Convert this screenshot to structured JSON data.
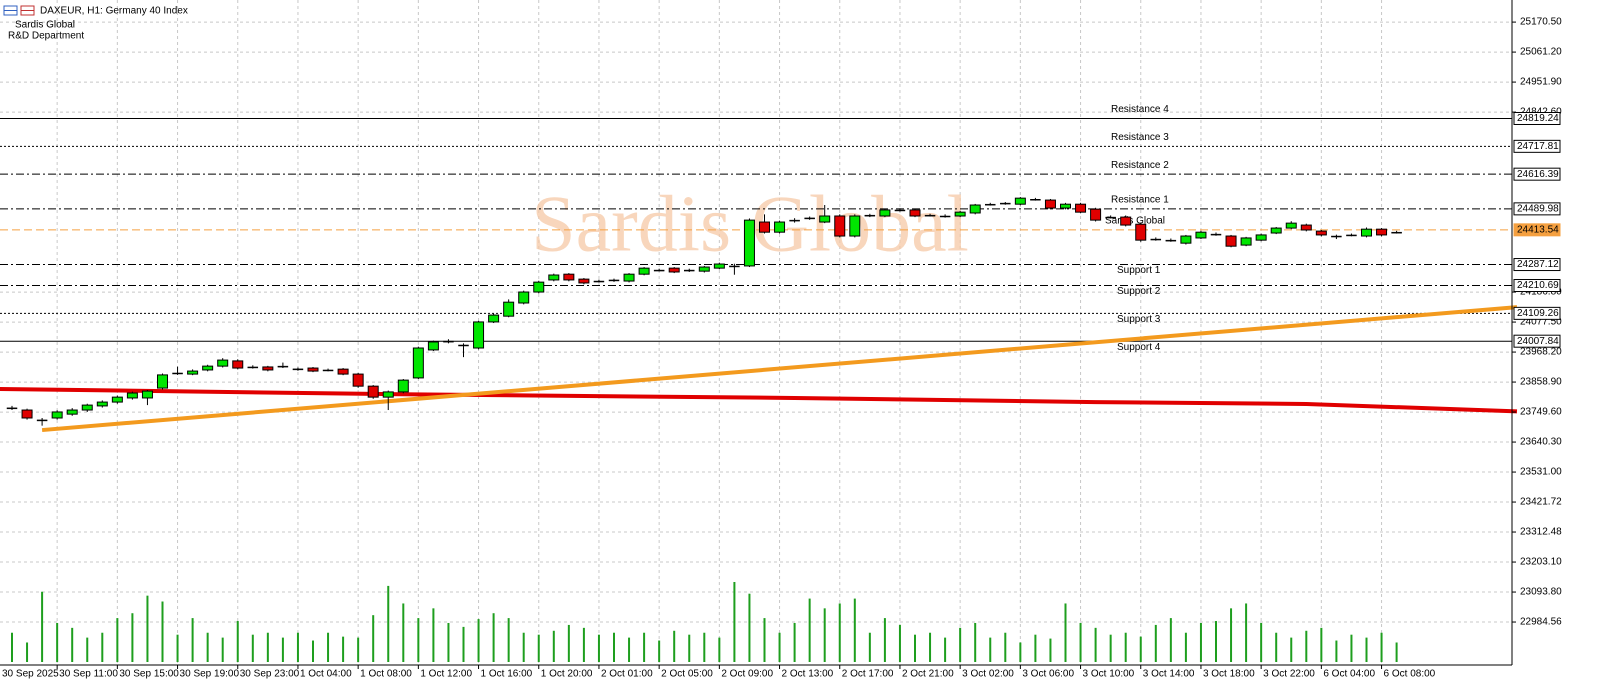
{
  "header": {
    "symbol": "DAXEUR, H1:  Germany 40 Index",
    "company": "Sardis Global",
    "department": "R&D Department",
    "watermark": "Sardis Global"
  },
  "chart_data": {
    "type": "candlestick",
    "x_labels": [
      "30 Sep 2025",
      "30 Sep 11:00",
      "30 Sep 15:00",
      "30 Sep 19:00",
      "30 Sep 23:00",
      "1 Oct 04:00",
      "1 Oct 08:00",
      "1 Oct 12:00",
      "1 Oct 16:00",
      "1 Oct 20:00",
      "2 Oct 01:00",
      "2 Oct 05:00",
      "2 Oct 09:00",
      "2 Oct 13:00",
      "2 Oct 17:00",
      "2 Oct 21:00",
      "3 Oct 02:00",
      "3 Oct 06:00",
      "3 Oct 10:00",
      "3 Oct 14:00",
      "3 Oct 18:00",
      "3 Oct 22:00",
      "6 Oct 04:00",
      "6 Oct 08:00"
    ],
    "open": [
      23764,
      23757,
      23721,
      23728,
      23742,
      23757,
      23772,
      23786,
      23801,
      23801,
      23837,
      23892,
      23888,
      23903,
      23917,
      23936,
      23914,
      23914,
      23917,
      23906,
      23910,
      23903,
      23906,
      23888,
      23844,
      23804,
      23823,
      23874,
      23976,
      24008,
      23994,
      23983,
      24078,
      24099,
      24147,
      24187,
      24231,
      24252,
      24234,
      24227,
      24231,
      24227,
      24252,
      24267,
      24274,
      24267,
      24263,
      24274,
      24282,
      24282,
      24442,
      24405,
      24449,
      24457,
      24442,
      24464,
      24391,
      24467,
      24464,
      24486,
      24486,
      24467,
      24464,
      24464,
      24475,
      24507,
      24511,
      24507,
      24525,
      24522,
      24493,
      24507,
      24489,
      24460,
      24460,
      24434,
      24380,
      24376,
      24365,
      24384,
      24398,
      24391,
      24358,
      24376,
      24402,
      24420,
      24431,
      24409,
      24391,
      24395,
      24391,
      24416,
      24405
    ],
    "high": [
      23772,
      23762,
      23728,
      23756,
      23764,
      23780,
      23792,
      23810,
      23824,
      23830,
      23890,
      23915,
      23905,
      23922,
      23946,
      23942,
      23920,
      23918,
      23930,
      23912,
      23914,
      23908,
      23910,
      23892,
      23848,
      23828,
      23870,
      23988,
      24010,
      24015,
      24000,
      24082,
      24108,
      24160,
      24192,
      24228,
      24254,
      24256,
      24238,
      24232,
      24236,
      24256,
      24278,
      24272,
      24278,
      24272,
      24282,
      24294,
      24290,
      24455,
      24470,
      24447,
      24456,
      24462,
      24504,
      24470,
      24470,
      24472,
      24490,
      24492,
      24490,
      24472,
      24470,
      24482,
      24508,
      24512,
      24515,
      24533,
      24530,
      24526,
      24512,
      24512,
      24494,
      24466,
      24466,
      24438,
      24386,
      24382,
      24395,
      24410,
      24404,
      24395,
      24388,
      24400,
      24424,
      24445,
      24436,
      24413,
      24396,
      24400,
      24422,
      24420,
      24410
    ],
    "low": [
      23757,
      23722,
      23700,
      23722,
      23736,
      23750,
      23766,
      23780,
      23795,
      23775,
      23832,
      23885,
      23884,
      23898,
      23912,
      23905,
      23908,
      23898,
      23910,
      23900,
      23895,
      23898,
      23884,
      23838,
      23798,
      23757,
      23818,
      23870,
      23972,
      24000,
      23950,
      23978,
      24074,
      24095,
      24142,
      24182,
      24226,
      24226,
      24215,
      24222,
      24224,
      24222,
      24248,
      24262,
      24256,
      24260,
      24258,
      24270,
      24250,
      24278,
      24400,
      24400,
      24440,
      24450,
      24438,
      24386,
      24386,
      24460,
      24460,
      24480,
      24460,
      24462,
      24458,
      24460,
      24470,
      24502,
      24505,
      24503,
      24520,
      24488,
      24488,
      24474,
      24444,
      24455,
      24426,
      24370,
      24374,
      24370,
      24360,
      24380,
      24392,
      24350,
      24354,
      24372,
      24398,
      24416,
      24408,
      24390,
      24380,
      24390,
      24386,
      24390,
      24400
    ],
    "close": [
      23765,
      23728,
      23720,
      23750,
      23757,
      23775,
      23786,
      23804,
      23819,
      23826,
      23885,
      23892,
      23899,
      23917,
      23939,
      23910,
      23913,
      23903,
      23916,
      23907,
      23899,
      23902,
      23888,
      23844,
      23804,
      23823,
      23866,
      23983,
      24005,
      24008,
      23994,
      24078,
      24103,
      24150,
      24187,
      24223,
      24249,
      24231,
      24220,
      24226,
      24230,
      24252,
      24274,
      24267,
      24260,
      24266,
      24278,
      24289,
      24282,
      24449,
      24405,
      24442,
      24449,
      24456,
      24464,
      24391,
      24464,
      24467,
      24486,
      24486,
      24464,
      24466,
      24464,
      24478,
      24504,
      24507,
      24510,
      24529,
      24525,
      24493,
      24507,
      24478,
      24449,
      24460,
      24431,
      24376,
      24380,
      24376,
      24391,
      24405,
      24398,
      24354,
      24384,
      24395,
      24420,
      24438,
      24413,
      24395,
      24391,
      24395,
      24416,
      24395,
      24405
    ],
    "up_color": "#00e600",
    "down_color": "#e00000",
    "volume": [
      30,
      20,
      72,
      40,
      35,
      25,
      30,
      45,
      50,
      68,
      62,
      28,
      45,
      30,
      25,
      42,
      28,
      30,
      25,
      30,
      22,
      30,
      26,
      25,
      48,
      78,
      60,
      45,
      55,
      40,
      36,
      44,
      50,
      45,
      30,
      28,
      32,
      38,
      35,
      28,
      30,
      25,
      30,
      22,
      32,
      28,
      30,
      25,
      82,
      70,
      45,
      30,
      40,
      65,
      55,
      60,
      65,
      30,
      45,
      38,
      28,
      30,
      25,
      35,
      40,
      25,
      30,
      20,
      28,
      24,
      60,
      40,
      35,
      28,
      30,
      26,
      38,
      45,
      30,
      40,
      42,
      55,
      60,
      40,
      30,
      25,
      32,
      35,
      22,
      28,
      25,
      30,
      20
    ],
    "volume_color": "#1e9e1e",
    "ylim": [
      22828,
      25251
    ],
    "yticks": [
      {
        "value": 25170.5,
        "label": "25170.50"
      },
      {
        "value": 25061.2,
        "label": "25061.20"
      },
      {
        "value": 24951.9,
        "label": "24951.90"
      },
      {
        "value": 24842.6,
        "label": "24842.60"
      },
      {
        "value": 24186.8,
        "label": "24186.80"
      },
      {
        "value": 24077.5,
        "label": "24077.50"
      },
      {
        "value": 23968.2,
        "label": "23968.20"
      },
      {
        "value": 23858.9,
        "label": "23858.90"
      },
      {
        "value": 23749.6,
        "label": "23749.60"
      },
      {
        "value": 23640.3,
        "label": "23640.30"
      },
      {
        "value": 23531,
        "label": "23531.00"
      },
      23421.72,
      23312.48,
      {
        "value": 23203.1,
        "label": "23203.10"
      },
      {
        "value": 23093.8,
        "label": "23093.80"
      },
      22984.56
    ],
    "grid": true,
    "levels": [
      {
        "name": "Resistance 4",
        "value": 24819.24,
        "style": "solid",
        "color": "#000000"
      },
      {
        "name": "Resistance 3",
        "value": 24717.81,
        "style": "dotted",
        "color": "#000000"
      },
      {
        "name": "Resistance 2",
        "value": 24616.39,
        "style": "dashdot",
        "color": "#000000"
      },
      {
        "name": "Resistance 1",
        "value": 24489.98,
        "style": "dashdot",
        "color": "#000000"
      },
      {
        "name": "Sardis Global",
        "value": 24413.54,
        "style": "dashed",
        "color": "#f5a040"
      },
      {
        "name": "Support 1",
        "value": 24287.12,
        "style": "dashdot",
        "color": "#000000"
      },
      {
        "name": "Support 2",
        "value": 24210.69,
        "style": "dashdot",
        "color": "#000000"
      },
      {
        "name": "Support 3",
        "value": 24109.26,
        "style": "dotted",
        "color": "#000000"
      },
      {
        "name": "Support 4",
        "value": 24007.84,
        "style": "solid",
        "color": "#000000"
      }
    ],
    "lines": [
      {
        "color": "#e00000",
        "x": [
          -1,
          25,
          52,
          72,
          86,
          100
        ],
        "values": [
          23834,
          23815,
          23801,
          23786,
          23779,
          23752
        ]
      },
      {
        "color": "#f39a1e",
        "x": [
          2,
          100
        ],
        "values": [
          23684,
          24132
        ]
      }
    ]
  }
}
